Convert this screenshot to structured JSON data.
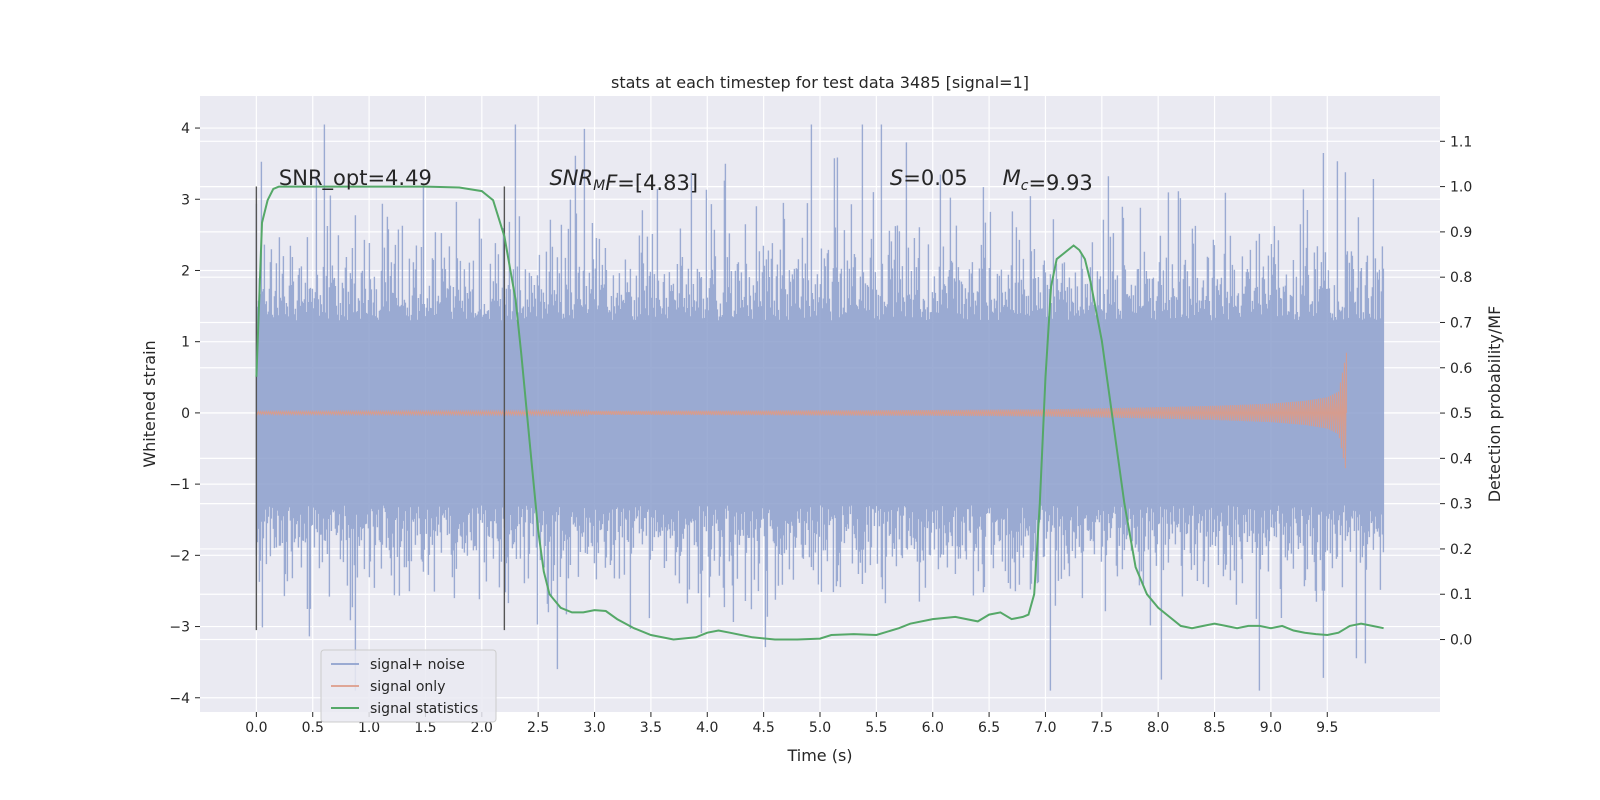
{
  "chart_data": {
    "type": "line",
    "title": "stats at each timestep for test data 3485 [signal=1]",
    "xlabel": "Time (s)",
    "ylabel": "Whitened strain",
    "y2label": "Detection probability/MF",
    "xlim": [
      -0.5,
      10.5
    ],
    "ylim": [
      -4.2,
      4.45
    ],
    "y2lim": [
      -0.16,
      1.2
    ],
    "x_ticks": [
      0.0,
      0.5,
      1.0,
      1.5,
      2.0,
      2.5,
      3.0,
      3.5,
      4.0,
      4.5,
      5.0,
      5.5,
      6.0,
      6.5,
      7.0,
      7.5,
      8.0,
      8.5,
      9.0,
      9.5
    ],
    "x_tick_labels": [
      "0.0",
      "0.5",
      "1.0",
      "1.5",
      "2.0",
      "2.5",
      "3.0",
      "3.5",
      "4.0",
      "4.5",
      "5.0",
      "5.5",
      "6.0",
      "6.5",
      "7.0",
      "7.5",
      "8.0",
      "8.5",
      "9.0",
      "9.5"
    ],
    "y_ticks": [
      -4,
      -3,
      -2,
      -1,
      0,
      1,
      2,
      3,
      4
    ],
    "y_tick_labels": [
      "−4",
      "−3",
      "−2",
      "−1",
      "0",
      "1",
      "2",
      "3",
      "4"
    ],
    "y2_ticks": [
      0.0,
      0.1,
      0.2,
      0.3,
      0.4,
      0.5,
      0.6,
      0.7,
      0.8,
      0.9,
      1.0,
      1.1
    ],
    "y2_tick_labels": [
      "0.0",
      "0.1",
      "0.2",
      "0.3",
      "0.4",
      "0.5",
      "0.6",
      "0.7",
      "0.8",
      "0.9",
      "1.0",
      "1.1"
    ],
    "grid": true,
    "legend_position": "lower-left",
    "vertical_lines": [
      0.0,
      2.2
    ],
    "series": [
      {
        "name": "signal+ noise",
        "color": "#8c9fcc",
        "t_range": [
          0.0,
          10.0
        ],
        "envelope": {
          "typical_amplitude": 1.3,
          "peak_max": 4.05,
          "peak_min": -3.9
        }
      },
      {
        "name": "signal only",
        "color": "#dd9a86",
        "t_range": [
          0.0,
          9.67
        ],
        "envelope_points": {
          "x": [
            0.0,
            4.0,
            6.0,
            7.0,
            8.0,
            8.5,
            9.0,
            9.3,
            9.5,
            9.6,
            9.67
          ],
          "amp": [
            0.02,
            0.03,
            0.04,
            0.05,
            0.08,
            0.1,
            0.13,
            0.17,
            0.22,
            0.3,
            0.85
          ]
        }
      },
      {
        "name": "signal statistics",
        "color": "#55a868",
        "x": [
          0.0,
          0.05,
          0.1,
          0.15,
          0.2,
          0.3,
          0.5,
          1.0,
          1.5,
          1.8,
          2.0,
          2.1,
          2.2,
          2.3,
          2.35,
          2.4,
          2.45,
          2.5,
          2.55,
          2.6,
          2.7,
          2.8,
          2.9,
          3.0,
          3.1,
          3.2,
          3.35,
          3.5,
          3.7,
          3.9,
          4.0,
          4.1,
          4.2,
          4.4,
          4.6,
          4.8,
          5.0,
          5.1,
          5.3,
          5.5,
          5.7,
          5.8,
          6.0,
          6.2,
          6.4,
          6.5,
          6.6,
          6.7,
          6.8,
          6.85,
          6.9,
          6.95,
          7.0,
          7.05,
          7.1,
          7.2,
          7.25,
          7.3,
          7.35,
          7.4,
          7.5,
          7.6,
          7.7,
          7.8,
          7.9,
          8.0,
          8.1,
          8.2,
          8.3,
          8.4,
          8.5,
          8.6,
          8.7,
          8.8,
          8.9,
          9.0,
          9.1,
          9.2,
          9.3,
          9.4,
          9.5,
          9.6,
          9.7,
          9.8,
          9.9,
          10.0
        ],
        "values": [
          0.58,
          0.92,
          0.97,
          0.995,
          1.0,
          1.0,
          1.0,
          1.0,
          1.0,
          0.998,
          0.99,
          0.97,
          0.89,
          0.75,
          0.63,
          0.5,
          0.37,
          0.24,
          0.15,
          0.1,
          0.07,
          0.06,
          0.06,
          0.065,
          0.063,
          0.045,
          0.025,
          0.01,
          0.0,
          0.005,
          0.015,
          0.02,
          0.015,
          0.005,
          0.0,
          0.0,
          0.002,
          0.01,
          0.012,
          0.01,
          0.025,
          0.035,
          0.045,
          0.05,
          0.04,
          0.055,
          0.06,
          0.045,
          0.05,
          0.055,
          0.1,
          0.3,
          0.58,
          0.78,
          0.84,
          0.86,
          0.87,
          0.86,
          0.84,
          0.79,
          0.66,
          0.48,
          0.3,
          0.16,
          0.1,
          0.07,
          0.05,
          0.03,
          0.025,
          0.03,
          0.035,
          0.03,
          0.025,
          0.03,
          0.03,
          0.025,
          0.03,
          0.02,
          0.015,
          0.012,
          0.01,
          0.015,
          0.03,
          0.035,
          0.03,
          0.025
        ]
      }
    ],
    "annotations": [
      {
        "x": 0.2,
        "y": 3.2,
        "parts": [
          {
            "text": "SNR_opt=4.49",
            "italic": false
          }
        ]
      },
      {
        "x": 2.6,
        "y": 3.2,
        "parts": [
          {
            "text": "SNR",
            "italic": true
          },
          {
            "text": "M",
            "italic": true,
            "sub": true
          },
          {
            "text": "F",
            "italic": true
          },
          {
            "text": "=[4.83]",
            "italic": false
          }
        ]
      },
      {
        "x": 5.62,
        "y": 3.2,
        "parts": [
          {
            "text": "S",
            "italic": true
          },
          {
            "text": "=0.05",
            "italic": false
          }
        ]
      },
      {
        "x": 6.62,
        "y": 3.2,
        "parts": [
          {
            "text": "M",
            "italic": true
          },
          {
            "text": "c",
            "italic": true,
            "sub": true
          },
          {
            "text": "=9.93",
            "italic": false
          }
        ]
      }
    ]
  }
}
